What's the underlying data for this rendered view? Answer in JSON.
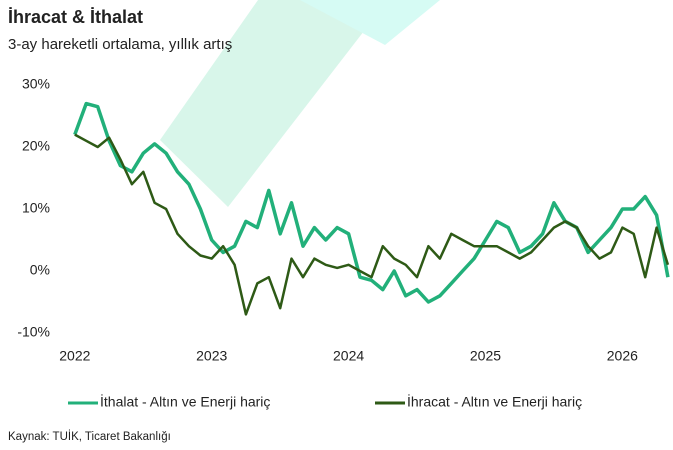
{
  "chart_data": {
    "type": "line",
    "title": "İhracat & İthalat",
    "subtitle": "3-ay hareketli ortalama, yıllık artış",
    "source": "Kaynak: TUİK, Ticaret Bakanlığı",
    "x": [
      2022,
      2022.083,
      2022.167,
      2022.25,
      2022.333,
      2022.417,
      2022.5,
      2022.583,
      2022.667,
      2022.75,
      2022.833,
      2022.917,
      2023,
      2023.083,
      2023.167,
      2023.25,
      2023.333,
      2023.417,
      2023.5,
      2023.583,
      2023.667,
      2023.75,
      2023.833,
      2023.917,
      2024,
      2024.083,
      2024.167,
      2024.25,
      2024.333,
      2024.417,
      2024.5,
      2024.583,
      2024.667,
      2024.75,
      2024.833,
      2024.917,
      2025,
      2025.083,
      2025.167,
      2025.25,
      2025.333,
      2025.417,
      2025.5,
      2025.583,
      2025.667,
      2025.75,
      2025.833,
      2025.917,
      2026,
      2026.083,
      2026.167,
      2026.25,
      2026.333
    ],
    "series": [
      {
        "name": "İthalat - Altın ve Enerji hariç",
        "color": "#22b07a",
        "values": [
          22,
          27,
          26.5,
          21,
          17,
          16,
          19,
          20.5,
          19,
          16,
          14,
          10,
          5,
          3,
          4,
          8,
          7,
          13,
          6,
          11,
          4,
          7,
          5,
          7,
          6,
          -1,
          -1.5,
          -3,
          0,
          -4,
          -3,
          -5,
          -4,
          -2,
          0,
          2,
          5,
          8,
          7,
          3,
          4,
          6,
          11,
          8,
          7,
          3,
          5,
          7,
          10,
          10,
          12,
          9,
          -1
        ]
      },
      {
        "name": "İhracat - Altın ve Enerji hariç",
        "color": "#2e5a16",
        "values": [
          22,
          21,
          20,
          21.5,
          18,
          14,
          16,
          11,
          10,
          6,
          4,
          2.5,
          2,
          4,
          1,
          -7,
          -2,
          -1,
          -6,
          2,
          -1,
          2,
          1,
          0.5,
          1,
          0,
          -1,
          4,
          2,
          1,
          -1,
          4,
          2,
          6,
          5,
          4,
          4,
          4,
          3,
          2,
          3,
          5,
          7,
          8,
          7,
          4,
          2,
          3,
          7,
          6,
          -1,
          7,
          1
        ]
      }
    ],
    "xlim": [
      2021.95,
      2026.37
    ],
    "xticks": [
      2022,
      2023,
      2024,
      2025,
      2026
    ],
    "ylim": [
      -12,
      33
    ],
    "yticks": [
      {
        "value": -10,
        "label": "-10%"
      },
      {
        "value": 0,
        "label": "0%"
      },
      {
        "value": 10,
        "label": "10%"
      },
      {
        "value": 20,
        "label": "20%"
      },
      {
        "value": 30,
        "label": "30%"
      }
    ],
    "grid": false
  }
}
